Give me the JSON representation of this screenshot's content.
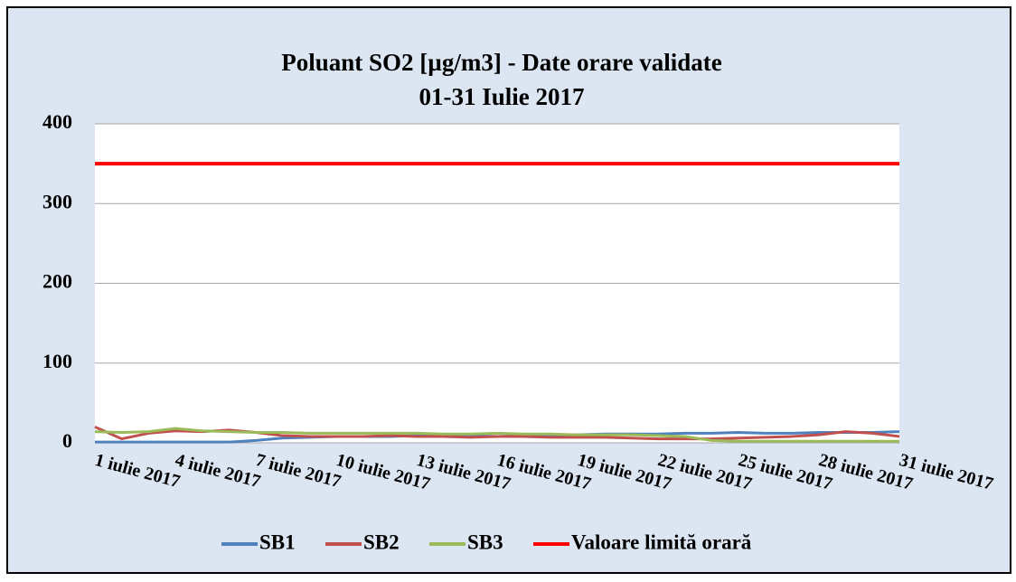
{
  "chart_data": {
    "type": "line",
    "title": "Poluant SO2 [µg/m3] - Date orare validate",
    "subtitle": "01-31 Iulie 2017",
    "categories": [
      "1 iulie 2017",
      null,
      null,
      "4 iulie 2017",
      null,
      null,
      "7 iulie 2017",
      null,
      null,
      "10 iulie 2017",
      null,
      null,
      "13 iulie 2017",
      null,
      null,
      "16 iulie 2017",
      null,
      null,
      "19 iulie 2017",
      null,
      null,
      "22 iulie 2017",
      null,
      null,
      "25 iulie 2017",
      null,
      null,
      "28 iulie 2017",
      null,
      null,
      "31 iulie 2017"
    ],
    "series": [
      {
        "name": "SB1",
        "color": "#4f81bd",
        "values": [
          1,
          1,
          1,
          1,
          1,
          1,
          3,
          6,
          7,
          8,
          8,
          8,
          9,
          9,
          9,
          8,
          9,
          10,
          10,
          11,
          11,
          11,
          12,
          12,
          13,
          12,
          12,
          13,
          13,
          13,
          14
        ]
      },
      {
        "name": "SB2",
        "color": "#c0504d",
        "values": [
          20,
          5,
          12,
          15,
          14,
          16,
          13,
          9,
          8,
          8,
          8,
          9,
          8,
          8,
          7,
          8,
          8,
          7,
          7,
          7,
          6,
          5,
          5,
          5,
          6,
          7,
          8,
          10,
          14,
          12,
          8
        ]
      },
      {
        "name": "SB3",
        "color": "#9bbb59",
        "values": [
          14,
          13,
          14,
          18,
          15,
          14,
          13,
          13,
          12,
          12,
          12,
          12,
          12,
          11,
          11,
          12,
          11,
          11,
          10,
          10,
          10,
          9,
          8,
          3,
          2,
          2,
          2,
          2,
          2,
          2,
          2
        ]
      },
      {
        "name": "Valoare limită orară",
        "color": "#ff0000",
        "values": [
          350,
          350,
          350,
          350,
          350,
          350,
          350,
          350,
          350,
          350,
          350,
          350,
          350,
          350,
          350,
          350,
          350,
          350,
          350,
          350,
          350,
          350,
          350,
          350,
          350,
          350,
          350,
          350,
          350,
          350,
          350
        ]
      }
    ],
    "ylim": [
      0,
      400
    ],
    "yticks": [
      0,
      100,
      200,
      300,
      400
    ],
    "grid": true,
    "legend": "bottom"
  }
}
